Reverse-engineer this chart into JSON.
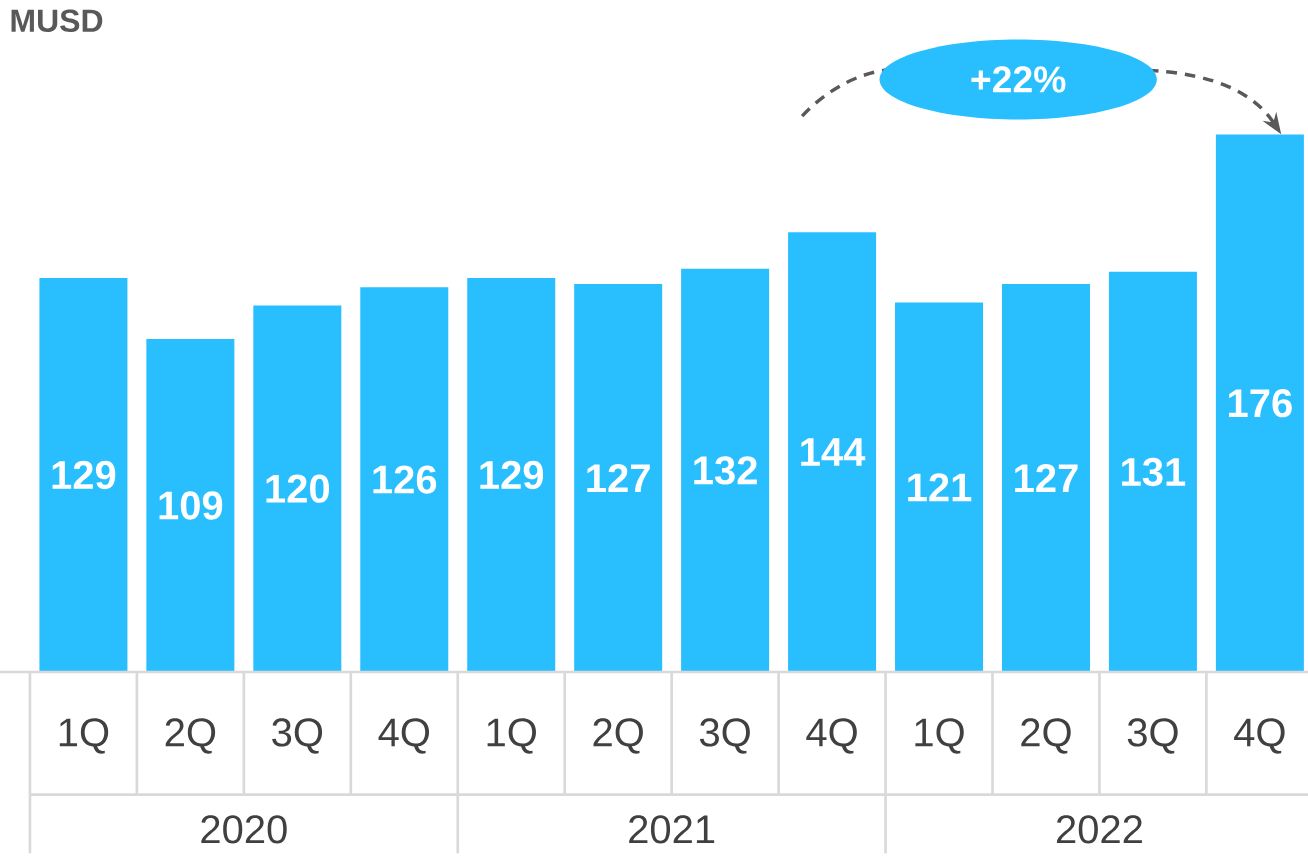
{
  "chart_data": {
    "type": "bar",
    "ylabel": "MUSD",
    "categories": [
      "1Q",
      "2Q",
      "3Q",
      "4Q",
      "1Q",
      "2Q",
      "3Q",
      "4Q",
      "1Q",
      "2Q",
      "3Q",
      "4Q"
    ],
    "values": [
      129,
      109,
      120,
      126,
      129,
      127,
      132,
      144,
      121,
      127,
      131,
      176
    ],
    "color": "#29bfff",
    "tick_labels": "x",
    "data_labels": true,
    "annotations": [
      "2020",
      "2021",
      "2022",
      "+22%"
    ]
  }
}
